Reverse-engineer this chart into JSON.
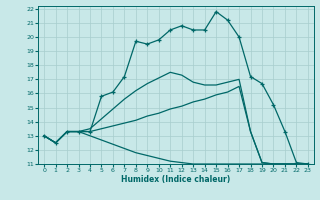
{
  "xlabel": "Humidex (Indice chaleur)",
  "bg_color": "#c8e8e8",
  "grid_color": "#a8cece",
  "line_color": "#006868",
  "xlim": [
    -0.5,
    23.5
  ],
  "ylim": [
    11,
    22.2
  ],
  "xticks": [
    0,
    1,
    2,
    3,
    4,
    5,
    6,
    7,
    8,
    9,
    10,
    11,
    12,
    13,
    14,
    15,
    16,
    17,
    18,
    19,
    20,
    21,
    22,
    23
  ],
  "yticks": [
    11,
    12,
    13,
    14,
    15,
    16,
    17,
    18,
    19,
    20,
    21,
    22
  ],
  "line1_x": [
    0,
    1,
    2,
    3,
    4,
    5,
    6,
    7,
    8,
    9,
    10,
    11,
    12,
    13,
    14,
    15,
    16,
    17,
    18,
    19,
    20,
    21,
    22,
    23
  ],
  "line1_y": [
    13.0,
    12.5,
    13.3,
    13.3,
    13.3,
    15.8,
    16.1,
    17.2,
    19.7,
    19.5,
    19.8,
    20.5,
    20.8,
    20.5,
    20.5,
    21.8,
    21.2,
    20.0,
    17.2,
    16.7,
    15.2,
    13.3,
    11.1,
    11.0
  ],
  "line2_x": [
    0,
    1,
    2,
    3,
    4,
    5,
    6,
    7,
    8,
    9,
    10,
    11,
    12,
    13,
    14,
    15,
    16,
    17,
    18,
    19,
    20,
    21,
    22,
    23
  ],
  "line2_y": [
    13.0,
    12.5,
    13.3,
    13.3,
    13.3,
    13.5,
    13.7,
    13.9,
    14.1,
    14.4,
    14.6,
    14.9,
    15.1,
    15.4,
    15.6,
    15.9,
    16.1,
    16.5,
    13.3,
    11.1,
    11.0,
    11.0,
    11.0,
    11.0
  ],
  "line3_x": [
    0,
    1,
    2,
    3,
    4,
    5,
    6,
    7,
    8,
    9,
    10,
    11,
    12,
    13,
    14,
    15,
    16,
    17,
    18,
    19,
    20,
    21,
    22,
    23
  ],
  "line3_y": [
    13.0,
    12.5,
    13.3,
    13.3,
    13.0,
    12.7,
    12.4,
    12.1,
    11.8,
    11.6,
    11.4,
    11.2,
    11.1,
    11.0,
    11.0,
    11.0,
    11.0,
    11.0,
    11.0,
    11.0,
    11.0,
    11.0,
    11.0,
    11.0
  ],
  "line4_x": [
    0,
    1,
    2,
    3,
    4,
    5,
    6,
    7,
    8,
    9,
    10,
    11,
    12,
    13,
    14,
    15,
    16,
    17,
    18,
    19,
    20,
    21,
    22,
    23
  ],
  "line4_y": [
    13.0,
    12.5,
    13.3,
    13.3,
    13.5,
    14.2,
    14.9,
    15.6,
    16.2,
    16.7,
    17.1,
    17.5,
    17.3,
    16.8,
    16.6,
    16.6,
    16.8,
    17.0,
    13.3,
    11.1,
    11.0,
    11.0,
    11.0,
    11.0
  ]
}
